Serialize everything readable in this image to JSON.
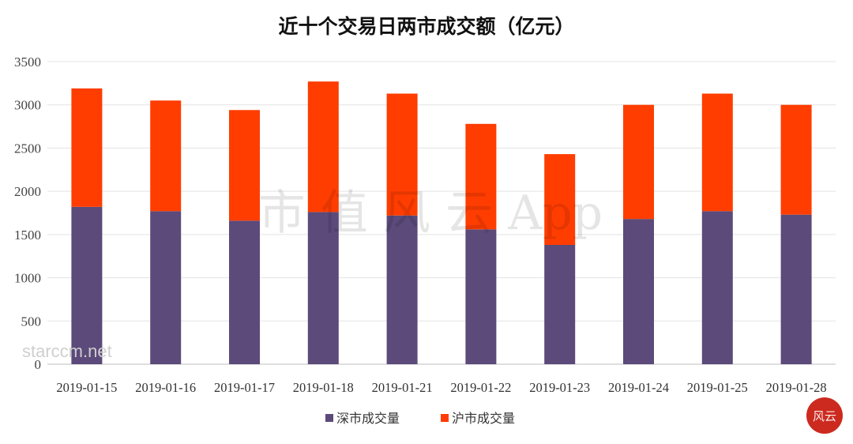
{
  "chart_data": {
    "type": "bar",
    "stacked": true,
    "title": "近十个交易日两市成交额（亿元）",
    "categories": [
      "2019-01-15",
      "2019-01-16",
      "2019-01-17",
      "2019-01-18",
      "2019-01-21",
      "2019-01-22",
      "2019-01-23",
      "2019-01-24",
      "2019-01-25",
      "2019-01-28"
    ],
    "series": [
      {
        "name": "深市成交量",
        "color": "#5b4a7a",
        "values": [
          1820,
          1770,
          1660,
          1760,
          1720,
          1560,
          1380,
          1680,
          1770,
          1730
        ]
      },
      {
        "name": "沪市成交量",
        "color": "#ff3d00",
        "values": [
          1370,
          1280,
          1280,
          1510,
          1410,
          1220,
          1050,
          1320,
          1360,
          1270
        ]
      }
    ],
    "ylim": [
      0,
      3500
    ],
    "yticks": [
      0,
      500,
      1000,
      1500,
      2000,
      2500,
      3000,
      3500
    ],
    "grid": true,
    "legend": "bottom-center",
    "xlabel": "",
    "ylabel": ""
  },
  "watermark": {
    "text": "市 值 风 云 App",
    "site": "starccm.net",
    "seal_text": "风云",
    "seal_color": "#cc2a1f"
  }
}
